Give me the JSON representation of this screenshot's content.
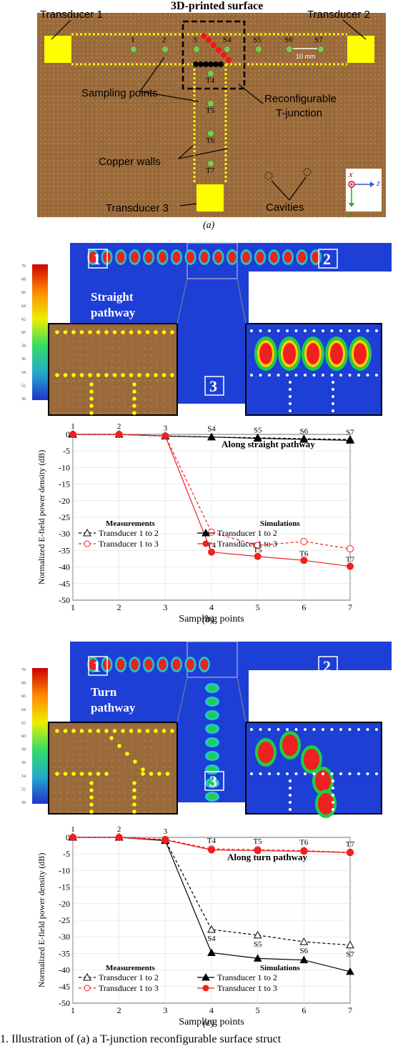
{
  "panel_a": {
    "title": "3D-printed surface",
    "transducer1": "Transducer 1",
    "transducer2": "Transducer 2",
    "transducer3": "Transducer 3",
    "sampling_points": "Sampling points",
    "copper_walls": "Copper walls",
    "reconfig": "Reconfigurable",
    "tjunction": "T-junction",
    "cavities": "Cavities",
    "scale": "10 mm",
    "pts": [
      "1",
      "2",
      "3",
      "S4",
      "S5",
      "S6",
      "S7"
    ],
    "tpts": [
      "T4",
      "T5",
      "T6",
      "T7"
    ],
    "axis_x": "x",
    "axis_y": "y",
    "axis_z": "z",
    "label": "(a)"
  },
  "panel_b": {
    "field_label": "Straight\npathway",
    "port1": "1",
    "port2": "2",
    "port3": "3",
    "colorbar_ticks": [
      "70",
      "68",
      "66",
      "64",
      "62",
      "60",
      "58",
      "56",
      "54",
      "52",
      "50"
    ],
    "label": "(b)"
  },
  "panel_c": {
    "field_label": "Turn\npathway",
    "port1": "1",
    "port2": "2",
    "port3": "3",
    "colorbar_ticks": [
      "70",
      "68",
      "66",
      "64",
      "62",
      "60",
      "58",
      "56",
      "54",
      "52",
      "50"
    ],
    "label": "(c)"
  },
  "caption": "1.  Illustration of  (a) a T-junction reconfigurable surface struct",
  "chart_data": [
    {
      "type": "line",
      "annotation": "Along straight pathway",
      "xlabel": "Sampling points",
      "ylabel": "Normalized E-field power density (dB)",
      "xlim": [
        1,
        7
      ],
      "ylim": [
        -50,
        0
      ],
      "xticks": [
        1,
        2,
        3,
        4,
        5,
        6,
        7
      ],
      "yticks": [
        0,
        -5,
        -10,
        -15,
        -20,
        -25,
        -30,
        -35,
        -40,
        -45,
        -50
      ],
      "x": [
        1,
        2,
        3,
        4,
        5,
        6,
        7
      ],
      "point_labels_top": [
        "1",
        "2",
        "3",
        "S4",
        "S5",
        "S6",
        "S7"
      ],
      "point_labels_bottom": [
        "T4",
        "T5",
        "T6",
        "T7"
      ],
      "legend": {
        "measurements": "Measurements",
        "simulations": "Simulations"
      },
      "series": [
        {
          "name": "Transducer 1 to 2",
          "group": "Measurements",
          "values": [
            0,
            0,
            -0.5,
            -0.8,
            -1.0,
            -1.3,
            -1.5
          ]
        },
        {
          "name": "Transducer 1 to 3",
          "group": "Measurements",
          "values": [
            0,
            0,
            -0.5,
            -29.5,
            -33.5,
            -32.3,
            -34.5
          ]
        },
        {
          "name": "Transducer 1 to 2",
          "group": "Simulations",
          "values": [
            0,
            0,
            -0.5,
            -0.8,
            -1.2,
            -1.5,
            -1.8
          ]
        },
        {
          "name": "Transducer 1 to 3",
          "group": "Simulations",
          "values": [
            0,
            0,
            -0.5,
            -35.5,
            -36.8,
            -38.0,
            -39.8
          ]
        }
      ]
    },
    {
      "type": "line",
      "annotation": "Along turn pathway",
      "xlabel": "Sampling points",
      "ylabel": "Normalized E-field power density (dB)",
      "xlim": [
        1,
        7
      ],
      "ylim": [
        -50,
        0
      ],
      "xticks": [
        1,
        2,
        3,
        4,
        5,
        6,
        7
      ],
      "yticks": [
        0,
        -5,
        -10,
        -15,
        -20,
        -25,
        -30,
        -35,
        -40,
        -45,
        -50
      ],
      "x": [
        1,
        2,
        3,
        4,
        5,
        6,
        7
      ],
      "point_labels_top": [
        "1",
        "2",
        "3",
        "T4",
        "T5",
        "T6",
        "T7"
      ],
      "point_labels_bottom": [
        "S4",
        "S5",
        "S6",
        "S7"
      ],
      "legend": {
        "measurements": "Measurements",
        "simulations": "Simulations"
      },
      "series": [
        {
          "name": "Transducer 1 to 2",
          "group": "Measurements",
          "values": [
            0,
            0,
            -0.8,
            -27.8,
            -29.5,
            -31.5,
            -32.5
          ]
        },
        {
          "name": "Transducer 1 to 3",
          "group": "Measurements",
          "values": [
            0,
            0,
            -0.6,
            -3.5,
            -3.7,
            -4.0,
            -4.5
          ]
        },
        {
          "name": "Transducer 1 to 2",
          "group": "Simulations",
          "values": [
            0,
            0,
            -1.0,
            -34.8,
            -36.5,
            -37.0,
            -40.5
          ]
        },
        {
          "name": "Transducer 1 to 3",
          "group": "Simulations",
          "values": [
            0,
            0,
            -0.8,
            -3.8,
            -4.0,
            -4.2,
            -4.6
          ]
        }
      ]
    }
  ]
}
